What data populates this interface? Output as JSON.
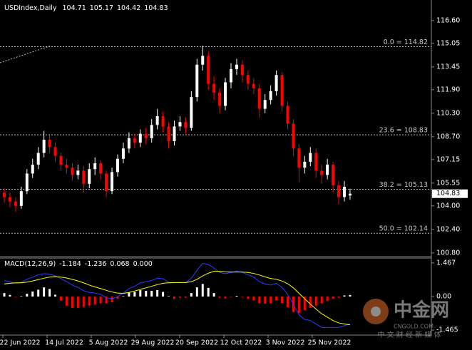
{
  "chart_data": [
    {
      "type": "candlestick",
      "title": "USDIndex,Daily",
      "header_values": [
        104.71,
        105.17,
        104.42,
        104.83
      ],
      "x_labels": [
        "22 Jun 2022",
        "14 Jul 2022",
        "5 Aug 2022",
        "29 Aug 2022",
        "20 Sep 2022",
        "12 Oct 2022",
        "3 Nov 2022",
        "25 Nov 2022"
      ],
      "ylim": [
        100.6,
        117.9
      ],
      "yticks": [
        {
          "value": 116.6,
          "label": "116.60"
        },
        115.05,
        113.45,
        {
          "value": 111.9,
          "label": "111.90"
        },
        {
          "value": 110.3,
          "label": "110.30"
        },
        {
          "value": 108.7,
          "label": "108.70"
        },
        107.15,
        105.55,
        {
          "value": 104,
          "label": "104.00"
        },
        {
          "value": 102.4,
          "label": "102.40"
        },
        {
          "value": 100.8,
          "label": "100.80"
        }
      ],
      "up_color": "#ffffff",
      "down_color": "#ff0000",
      "open": [
        104.9,
        104.6,
        104.3,
        104.0,
        105.0,
        106.2,
        106.8,
        107.6,
        108.5,
        108.0,
        107.4,
        106.8,
        106.6,
        106.1,
        106.4,
        105.5,
        106.5,
        106.9,
        106.2,
        105.0,
        106.3,
        107.2,
        107.9,
        108.6,
        108.3,
        108.9,
        108.6,
        109.5,
        110.1,
        109.4,
        108.4,
        109.4,
        109.7,
        109.3,
        111.4,
        113.6,
        114.2,
        112.3,
        111.7,
        110.8,
        112.4,
        113.3,
        113.6,
        112.9,
        112.3,
        112.0,
        110.6,
        111.2,
        111.8,
        112.9,
        110.8,
        109.6,
        107.9,
        106.6,
        107.0,
        107.6,
        106.4,
        106.1,
        106.8,
        105.4,
        104.6,
        104.71
      ],
      "high": [
        105.2,
        104.9,
        104.6,
        105.3,
        106.5,
        107.2,
        108.0,
        109.1,
        108.8,
        108.3,
        107.6,
        107.2,
        106.9,
        106.8,
        106.7,
        106.9,
        107.3,
        107.1,
        106.4,
        106.6,
        107.5,
        108.3,
        109.0,
        108.9,
        109.2,
        109.3,
        109.9,
        110.6,
        110.4,
        109.7,
        109.8,
        110.1,
        110.0,
        111.8,
        114.0,
        114.9,
        114.5,
        112.8,
        112.0,
        112.7,
        113.7,
        114.0,
        113.9,
        113.2,
        112.7,
        112.3,
        111.6,
        112.2,
        113.2,
        113.1,
        111.1,
        109.9,
        108.2,
        107.4,
        108.0,
        107.9,
        106.8,
        107.2,
        107.0,
        105.7,
        105.7,
        105.17
      ],
      "low": [
        104.2,
        103.9,
        103.6,
        103.8,
        104.8,
        105.9,
        106.5,
        107.3,
        107.6,
        107.0,
        106.4,
        106.2,
        105.7,
        105.8,
        104.9,
        105.2,
        106.1,
        105.8,
        104.6,
        104.8,
        106.0,
        106.9,
        107.6,
        107.9,
        108.0,
        108.2,
        108.3,
        109.2,
        109.0,
        107.9,
        108.1,
        109.1,
        108.9,
        109.1,
        111.1,
        113.2,
        111.9,
        111.2,
        110.3,
        110.5,
        112.0,
        112.9,
        112.4,
        111.9,
        111.6,
        110.0,
        110.3,
        110.9,
        111.5,
        110.4,
        109.2,
        107.4,
        105.6,
        106.2,
        106.7,
        105.9,
        105.5,
        105.8,
        104.9,
        104.1,
        104.3,
        104.42
      ],
      "close": [
        104.6,
        104.3,
        104.0,
        105.0,
        106.2,
        106.8,
        107.6,
        108.5,
        108.0,
        107.4,
        106.8,
        106.6,
        106.1,
        106.4,
        105.5,
        106.5,
        106.9,
        106.2,
        105.0,
        106.3,
        107.2,
        107.9,
        108.6,
        108.3,
        108.9,
        108.6,
        109.5,
        110.1,
        109.4,
        108.4,
        109.4,
        109.7,
        109.3,
        111.4,
        113.6,
        114.2,
        112.3,
        111.7,
        110.8,
        112.4,
        113.3,
        113.6,
        112.9,
        112.3,
        112.0,
        110.6,
        111.2,
        111.8,
        112.9,
        110.8,
        109.6,
        107.9,
        106.6,
        107.0,
        107.6,
        106.4,
        106.1,
        106.8,
        105.4,
        104.6,
        105.3,
        104.83
      ],
      "fib_levels": [
        {
          "value": 114.82,
          "label": "0.0 = 114.82"
        },
        {
          "value": 108.83,
          "label": "23.6 = 108.83"
        },
        {
          "value": 105.13,
          "label": "38.2 = 105.13"
        },
        {
          "value": 102.14,
          "label": "50.0 = 102.14"
        }
      ],
      "last_price": 104.83
    },
    {
      "type": "macd",
      "title": "MACD(12,26,9)",
      "header_values": [
        -1.184,
        -1.236,
        0.068,
        {
          "value": 0,
          "label": "0.000"
        }
      ],
      "ylim": [
        -1.65,
        1.65
      ],
      "yticks": [
        1.467,
        {
          "value": 0,
          "label": "0.00"
        },
        -1.465
      ],
      "series": [
        {
          "type": "histogram",
          "color": "#ffffff",
          "negative_color": "#ff0000",
          "values": [
            0.15,
            0.07,
            -0.02,
            0.02,
            0.12,
            0.22,
            0.3,
            0.4,
            0.33,
            0.08,
            -0.18,
            -0.4,
            -0.5,
            -0.5,
            -0.45,
            -0.4,
            -0.35,
            -0.3,
            -0.3,
            -0.25,
            -0.1,
            0.02,
            0.17,
            0.2,
            0.28,
            0.25,
            0.25,
            0.28,
            0.2,
            0.02,
            -0.1,
            -0.05,
            -0.05,
            0.15,
            0.4,
            0.55,
            0.38,
            0.15,
            -0.05,
            -0.08,
            -0.02,
            0.03,
            -0.02,
            -0.1,
            -0.16,
            -0.29,
            -0.31,
            -0.29,
            -0.17,
            -0.28,
            -0.46,
            -0.68,
            -0.72,
            -0.6,
            -0.5,
            -0.4,
            -0.3,
            -0.2,
            -0.1,
            -0.05,
            0.05,
            0.068
          ]
        },
        {
          "type": "line",
          "color": "#2b3cff",
          "values": [
            0.7,
            0.65,
            0.58,
            0.62,
            0.75,
            0.85,
            0.95,
            1.0,
            0.98,
            0.9,
            0.78,
            0.65,
            0.5,
            0.4,
            0.25,
            0.18,
            0.15,
            0.1,
            -0.05,
            -0.1,
            0.0,
            0.15,
            0.35,
            0.45,
            0.6,
            0.65,
            0.7,
            0.8,
            0.78,
            0.62,
            0.6,
            0.62,
            0.6,
            0.8,
            1.15,
            1.45,
            1.4,
            1.25,
            1.05,
            1.0,
            1.05,
            1.1,
            1.05,
            0.95,
            0.85,
            0.65,
            0.55,
            0.5,
            0.58,
            0.4,
            0.1,
            -0.35,
            -0.8,
            -1.0,
            -1.05,
            -1.2,
            -1.35,
            -1.35,
            -1.35,
            -1.35,
            -1.28,
            -1.184
          ]
        },
        {
          "type": "line",
          "color": "#ffff00",
          "values": [
            0.55,
            0.58,
            0.6,
            0.6,
            0.63,
            0.68,
            0.74,
            0.8,
            0.85,
            0.87,
            0.85,
            0.81,
            0.75,
            0.68,
            0.6,
            0.5,
            0.42,
            0.35,
            0.27,
            0.2,
            0.15,
            0.14,
            0.18,
            0.24,
            0.31,
            0.38,
            0.45,
            0.52,
            0.58,
            0.6,
            0.61,
            0.61,
            0.61,
            0.65,
            0.75,
            0.9,
            1.02,
            1.1,
            1.1,
            1.08,
            1.07,
            1.07,
            1.07,
            1.05,
            1.01,
            0.94,
            0.86,
            0.79,
            0.75,
            0.68,
            0.56,
            0.38,
            0.14,
            -0.1,
            -0.33,
            -0.55,
            -0.75,
            -0.9,
            -1.05,
            -1.15,
            -1.2,
            -1.236
          ]
        }
      ]
    }
  ],
  "watermark": {
    "logo": "中金网",
    "url": "CNGOLD.COM",
    "tagline": "中 文 财 经 新 媒 体"
  }
}
